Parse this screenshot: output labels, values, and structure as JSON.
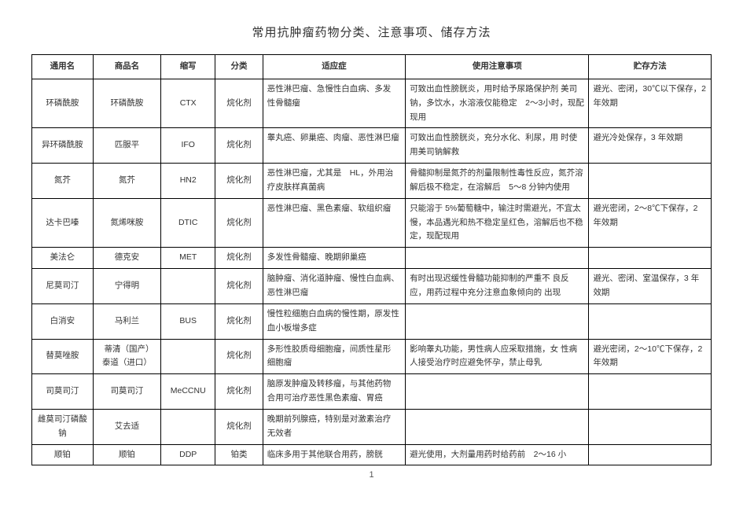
{
  "title": "常用抗肿瘤药物分类、注意事项、储存方法",
  "page_number": "1",
  "columns": [
    "通用名",
    "商品名",
    "缩写",
    "分类",
    "适应症",
    "使用注意事项",
    "贮存方法"
  ],
  "rows": [
    {
      "generic": "环磷酰胺",
      "brand": "环磷酰胺",
      "abbr": "CTX",
      "class": "烷化剂",
      "indication": "恶性淋巴瘤、急慢性白血病、多发 性骨髓瘤",
      "caution": "可致出血性膀胱炎，用时给予尿路保护剂 美司钠，多饮水，水溶液仅能稳定　2～3小时，现配现用",
      "storage": "避光、密闭，30℃以下保存，2 年效期"
    },
    {
      "generic": "异环磷酰胺",
      "brand": "匹服平",
      "abbr": "IFO",
      "class": "烷化剂",
      "indication": "睾丸癌、卵巢癌、肉瘤、恶性淋巴瘤",
      "caution": "可致出血性膀胱炎，充分水化、利尿，用 时使用美司钠解救",
      "storage": "避光冷处保存，3 年效期"
    },
    {
      "generic": "氮芥",
      "brand": "氮芥",
      "abbr": "HN2",
      "class": "烷化剂",
      "indication": "恶性淋巴瘤，尤其是　HL，外用治疗皮肤样真菌病",
      "caution": "骨髓抑制是氮芥的剂量限制性毒性反应，氮芥溶解后极不稳定，在溶解后　5～8 分钟内使用",
      "storage": ""
    },
    {
      "generic": "达卡巴嗪",
      "brand": "氮烯咪胺",
      "abbr": "DTIC",
      "class": "烷化剂",
      "indication": "恶性淋巴瘤、黑色素瘤、软组织瘤",
      "caution": "只能溶于 5%葡萄糖中，输注时需避光，不宜太慢，本品遇光和热不稳定呈红色，溶解后也不稳定，现配现用",
      "storage": "避光密闭，2～8℃下保存，2 年效期"
    },
    {
      "generic": "美法仑",
      "brand": "德克安",
      "abbr": "MET",
      "class": "烷化剂",
      "indication": "多发性骨髓瘤、晚期卵巢癌",
      "caution": "",
      "storage": ""
    },
    {
      "generic": "尼莫司汀",
      "brand": "宁得明",
      "abbr": "",
      "class": "烷化剂",
      "indication": "脑肿瘤、消化道肿瘤、慢性白血病、恶性淋巴瘤",
      "caution": "有时出现迟缓性骨髓功能抑制的严重不 良反应，用药过程中充分注意血象倾向的 出现",
      "storage": "避光、密闭、室温保存，3 年效期"
    },
    {
      "generic": "白消安",
      "brand": "马利兰",
      "abbr": "BUS",
      "class": "烷化剂",
      "indication": "慢性粒细胞白血病的慢性期，原发性血小板增多症",
      "caution": "",
      "storage": ""
    },
    {
      "generic": "替莫唑胺",
      "brand": "蒂清（国产）　泰道（进口）",
      "abbr": "",
      "class": "烷化剂",
      "indication": "多形性胶质母细胞瘤，间质性星形 细胞瘤",
      "caution": "影响睾丸功能，男性病人应采取措施，女 性病人接受治疗时应避免怀孕，禁止母乳",
      "storage": "避光密闭，2～10℃下保存，2 年效期"
    },
    {
      "generic": "司莫司汀",
      "brand": "司莫司汀",
      "abbr": "MeCCNU",
      "class": "烷化剂",
      "indication": "脑原发肿瘤及转移瘤，与其他药物 合用可治疗恶性黑色素瘤、胃癌",
      "caution": "",
      "storage": ""
    },
    {
      "generic": "雌莫司汀磷酸钠",
      "brand": "艾去适",
      "abbr": "",
      "class": "烷化剂",
      "indication": "晚期前列腺癌，特别是对激素治疗 无效者",
      "caution": "",
      "storage": ""
    },
    {
      "generic": "顺铂",
      "brand": "顺铂",
      "abbr": "DDP",
      "class": "铂类",
      "indication": "临床多用于其他联合用药，膀胱",
      "caution": "避光使用，大剂量用药时给药前　2～16 小",
      "storage": ""
    }
  ]
}
